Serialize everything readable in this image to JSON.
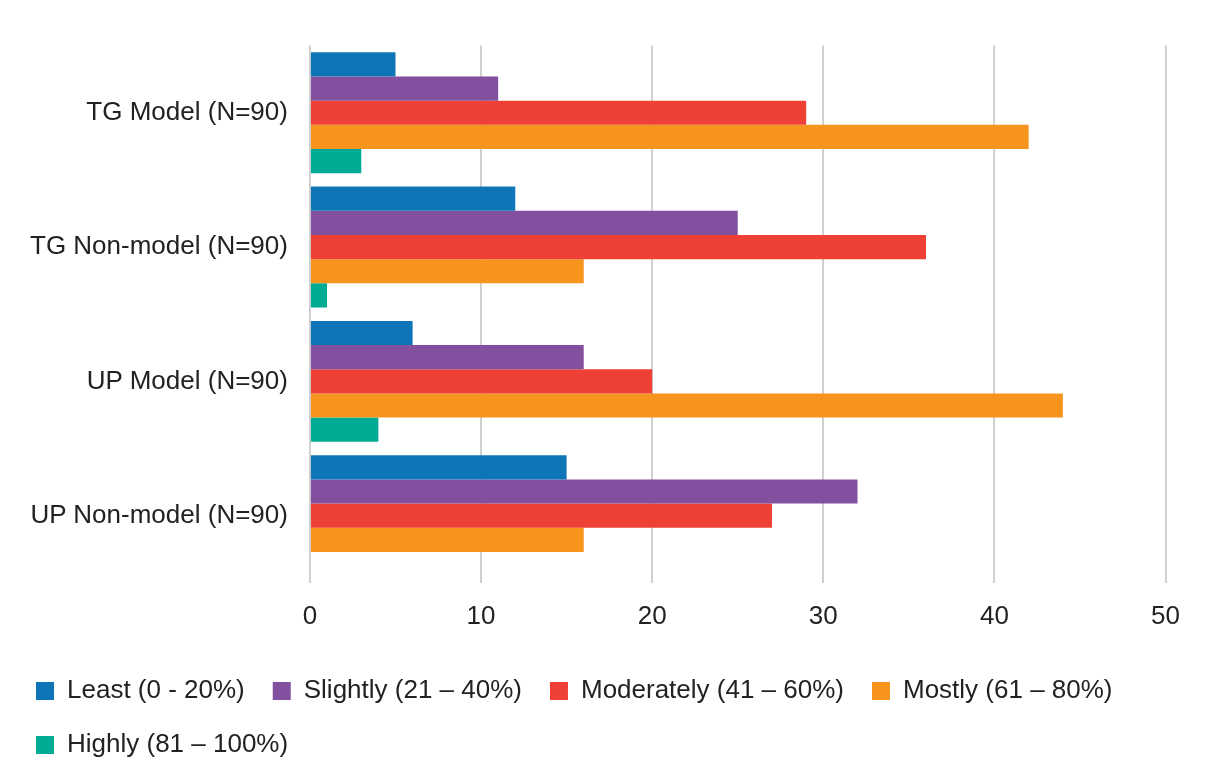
{
  "chart_data": {
    "type": "bar",
    "orientation": "horizontal",
    "categories": [
      "TG Model (N=90)",
      "TG Non-model (N=90)",
      "UP Model (N=90)",
      "UP Non-model (N=90)"
    ],
    "series": [
      {
        "name": "Least (0 - 20%)",
        "color": "#0e76b6",
        "values": [
          5,
          12,
          6,
          15
        ]
      },
      {
        "name": "Slightly (21 – 40%)",
        "color": "#8350a0",
        "values": [
          11,
          25,
          16,
          32
        ]
      },
      {
        "name": "Moderately (41 – 60%)",
        "color": "#ee4035",
        "values": [
          29,
          36,
          20,
          27
        ]
      },
      {
        "name": "Mostly (61 – 80%)",
        "color": "#f7941d",
        "values": [
          42,
          16,
          44,
          16
        ]
      },
      {
        "name": "Highly (81 – 100%)",
        "color": "#00ab96",
        "values": [
          3,
          1,
          4,
          0
        ]
      }
    ],
    "xlim": [
      0,
      50
    ],
    "xticks": [
      0,
      10,
      20,
      30,
      40,
      50
    ],
    "grid": "x",
    "legend": "bottom"
  }
}
